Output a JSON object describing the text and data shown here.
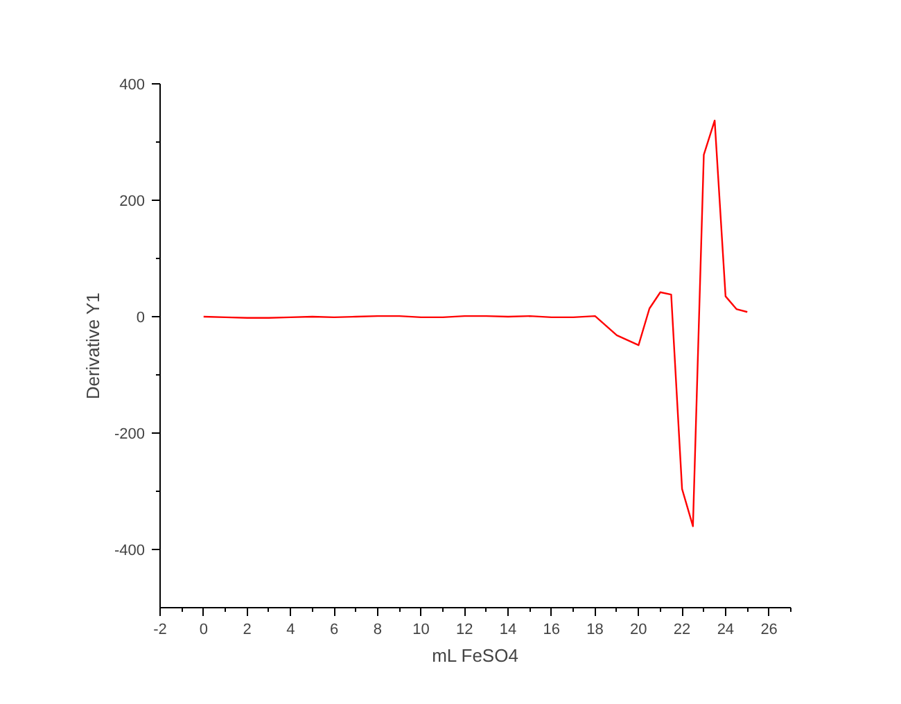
{
  "chart_data": {
    "type": "line",
    "xlabel": "mL FeSO4",
    "ylabel": "Derivative Y1",
    "x": [
      0,
      1,
      2,
      3,
      4,
      5,
      6,
      7,
      8,
      9,
      10,
      11,
      12,
      13,
      14,
      15,
      16,
      17,
      18,
      19,
      20,
      20.5,
      21,
      21.5,
      22,
      22.5,
      23,
      23.5,
      24,
      24.5,
      25
    ],
    "series": [
      {
        "color": "#ff0000",
        "values": [
          0,
          -1,
          -2,
          -2,
          -1,
          0,
          -1,
          0,
          1,
          1,
          -1,
          -1,
          1,
          1,
          0,
          1,
          -1,
          -1,
          1,
          -32,
          -49,
          14,
          42,
          38,
          -296,
          -360,
          278,
          337,
          35,
          13,
          8
        ]
      }
    ],
    "xlim": [
      -2,
      27
    ],
    "xticks": [
      -2,
      0,
      2,
      4,
      6,
      8,
      10,
      12,
      14,
      16,
      18,
      20,
      22,
      24,
      26
    ],
    "ylim": [
      -500,
      400
    ],
    "yticks": [
      -400,
      -200,
      0,
      200,
      400
    ],
    "grid": false,
    "marker": "none",
    "line_style": "solid"
  }
}
